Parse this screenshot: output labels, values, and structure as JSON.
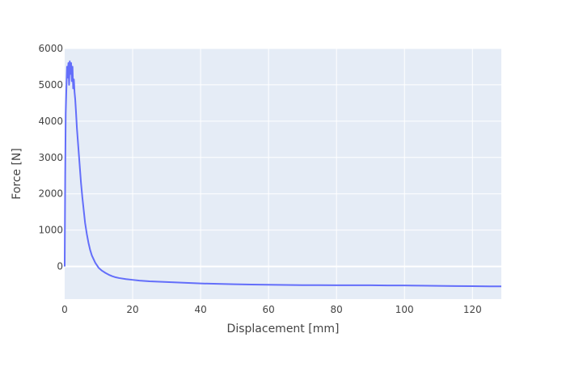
{
  "chart_data": {
    "type": "line",
    "title": "",
    "xlabel": "Displacement [mm]",
    "ylabel": "Force [N]",
    "xlim": [
      0,
      128.5
    ],
    "ylim": [
      -900,
      6000
    ],
    "x_ticks": [
      0,
      20,
      40,
      60,
      80,
      100,
      120
    ],
    "y_ticks": [
      0,
      1000,
      2000,
      3000,
      4000,
      5000,
      6000
    ],
    "grid": true,
    "legend": "none",
    "colors": {
      "plot_background": "#e5ecf6",
      "grid": "#ffffff",
      "series": "#636efa"
    },
    "series": [
      {
        "name": "",
        "x": [
          0,
          0.15,
          0.3,
          0.5,
          0.7,
          0.9,
          1.1,
          1.3,
          1.5,
          1.7,
          1.9,
          2.1,
          2.3,
          2.5,
          2.7,
          2.9,
          3.1,
          3.3,
          3.6,
          4.0,
          4.4,
          4.8,
          5.2,
          5.6,
          6.0,
          6.5,
          7.0,
          7.5,
          8.0,
          8.5,
          9.0,
          9.5,
          10,
          11,
          12,
          13,
          14,
          15,
          16,
          18,
          20,
          22,
          25,
          30,
          35,
          40,
          45,
          50,
          55,
          60,
          65,
          70,
          75,
          80,
          85,
          90,
          95,
          100,
          105,
          110,
          115,
          120,
          125,
          128.5
        ],
        "y": [
          0,
          2500,
          4200,
          4900,
          5500,
          5200,
          5600,
          5000,
          5650,
          5300,
          5600,
          5100,
          5500,
          4900,
          5150,
          4800,
          4600,
          4300,
          3800,
          3300,
          2800,
          2300,
          1900,
          1550,
          1200,
          900,
          650,
          450,
          300,
          200,
          100,
          30,
          -40,
          -120,
          -180,
          -230,
          -270,
          -300,
          -320,
          -350,
          -370,
          -390,
          -410,
          -430,
          -450,
          -470,
          -480,
          -490,
          -500,
          -505,
          -510,
          -515,
          -515,
          -520,
          -520,
          -520,
          -525,
          -525,
          -530,
          -535,
          -540,
          -545,
          -550,
          -550
        ]
      }
    ]
  }
}
